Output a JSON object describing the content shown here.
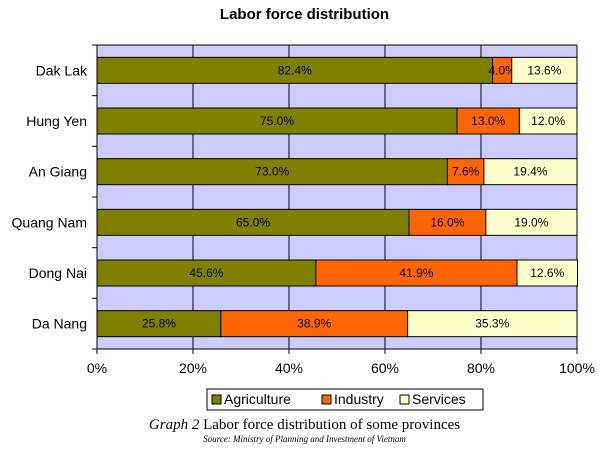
{
  "chart_data": {
    "type": "bar",
    "orientation": "horizontal",
    "stacked": "percent",
    "title": "Labor force distribution",
    "categories": [
      "Dak Lak",
      "Hung Yen",
      "An Giang",
      "Quang Nam",
      "Dong Nai",
      "Da Nang"
    ],
    "series": [
      {
        "name": "Agriculture",
        "color": "#808000",
        "values": [
          82.4,
          75.0,
          73.0,
          65.0,
          45.6,
          25.8
        ],
        "labels": [
          "82.4%",
          "75.0%",
          "73.0%",
          "65.0%",
          "45.6%",
          "25.8%"
        ]
      },
      {
        "name": "Industry",
        "color": "#FF6600",
        "values": [
          4.0,
          13.0,
          7.6,
          16.0,
          41.9,
          38.9
        ],
        "labels": [
          "4.0%",
          "13.0%",
          "7.6%",
          "16.0%",
          "41.9%",
          "38.9%"
        ]
      },
      {
        "name": "Services",
        "color": "#FFFFCC",
        "values": [
          13.6,
          12.0,
          19.4,
          19.0,
          12.6,
          35.3
        ],
        "labels": [
          "13.6%",
          "12.0%",
          "19.4%",
          "19.0%",
          "12.6%",
          "35.3%"
        ]
      }
    ],
    "xlim": [
      0,
      100
    ],
    "xticks": [
      "0%",
      "20%",
      "40%",
      "60%",
      "80%",
      "100%"
    ],
    "grid": true,
    "plot_background": "#CCCCFF",
    "legend": "bottom"
  },
  "caption": {
    "graph_number": "Graph 2",
    "text": " Labor force distribution of some provinces"
  },
  "source": "Source: Ministry of Planning and Investment of Vietnam"
}
